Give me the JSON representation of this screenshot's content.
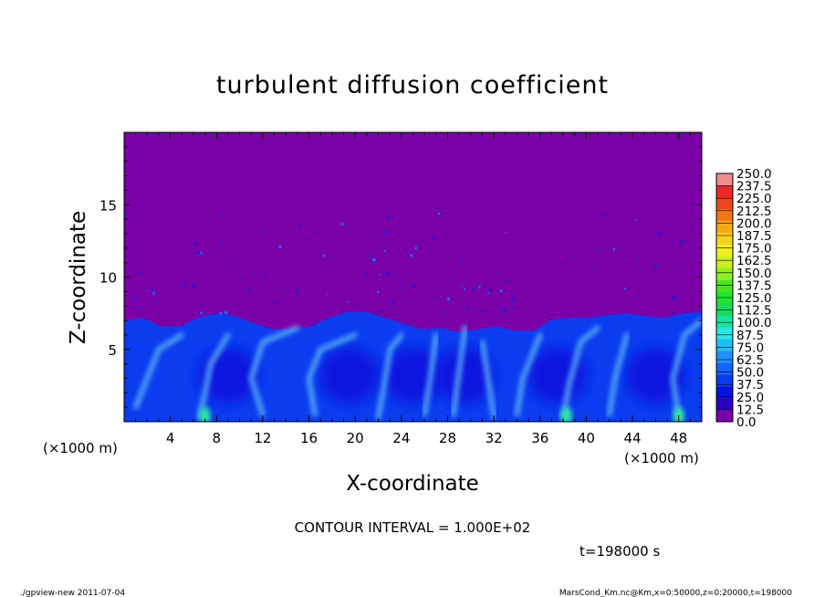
{
  "chart_data": {
    "type": "heatmap",
    "title": "turbulent diffusion coefficient",
    "xlabel": "X-coordinate",
    "ylabel": "Z-coordinate",
    "x_unit_label": "(×1000 m)",
    "xlim": [
      0,
      50
    ],
    "ylim": [
      0,
      20
    ],
    "x_ticks": [
      4,
      8,
      12,
      16,
      20,
      24,
      28,
      32,
      36,
      40,
      44,
      48
    ],
    "y_ticks": [
      5,
      10,
      15
    ],
    "colorbar": {
      "labels": [
        "0.0",
        "12.5",
        "25.0",
        "37.5",
        "50.0",
        "62.5",
        "75.0",
        "87.5",
        "100.0",
        "112.5",
        "125.0",
        "137.5",
        "150.0",
        "162.5",
        "175.0",
        "187.5",
        "200.0",
        "212.5",
        "225.0",
        "237.5",
        "250.0"
      ],
      "colors": [
        "#7a00a8",
        "#2a00c8",
        "#0a14e0",
        "#0a3cf0",
        "#1464ff",
        "#1e90ff",
        "#1ebef5",
        "#2ae6e6",
        "#14e6a0",
        "#14dc5a",
        "#1ee632",
        "#46e61e",
        "#8cf01e",
        "#c8f01e",
        "#f0f01e",
        "#f5d21e",
        "#f5aa14",
        "#f07814",
        "#eb461e",
        "#eb2828",
        "#f08c8c"
      ]
    },
    "boundary_layer": {
      "top_height": [
        7.0,
        7.2,
        6.6,
        6.6,
        7.2,
        7.5,
        7.3,
        6.8,
        6.4,
        6.4,
        6.6,
        7.2,
        7.6,
        7.6,
        7.2,
        6.8,
        6.4,
        6.5,
        6.2,
        6.4,
        6.6,
        6.3,
        6.3,
        7.1,
        7.2,
        7.2,
        7.4,
        7.5,
        7.3,
        7.2,
        7.5,
        7.6
      ],
      "vortex_centers_x": [
        9.0,
        19.5,
        25.0,
        29.5,
        37.5,
        46.0
      ],
      "vortex_center_z": 3.2
    },
    "annotations": {
      "contour_interval": "CONTOUR INTERVAL = 1.000E+02",
      "time": "t=198000 s",
      "footer_left": "./gpview-new   2011-07-04",
      "footer_right": "MarsCond_Km.nc@Km,x=0:50000,z=0:20000,t=198000"
    }
  }
}
